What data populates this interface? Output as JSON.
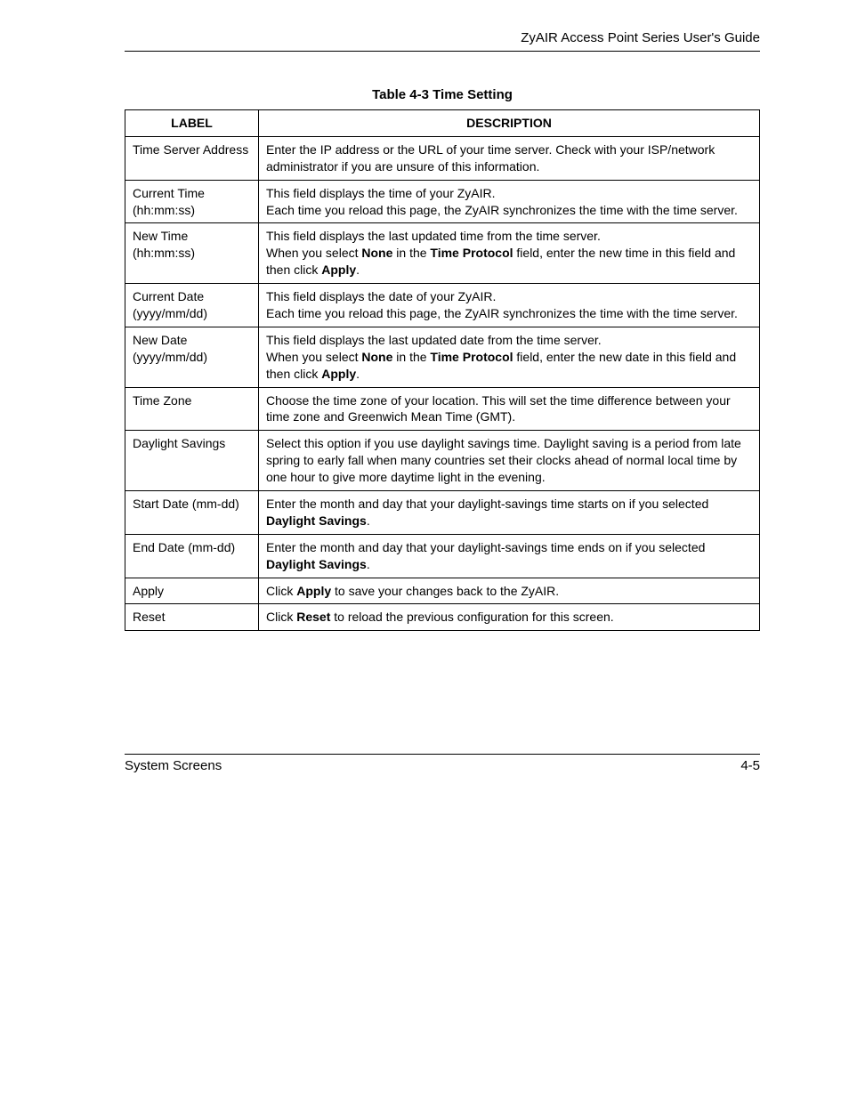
{
  "header": {
    "title": "ZyAIR Access Point Series User's Guide"
  },
  "table": {
    "title": "Table 4-3 Time Setting",
    "columns": {
      "label": "LABEL",
      "description": "DESCRIPTION"
    },
    "rows": [
      {
        "label": "Time Server Address",
        "desc_html": "Enter the IP address or the URL of your time server. Check with your ISP/network administrator if you are unsure of this information."
      },
      {
        "label": "Current Time (hh:mm:ss)",
        "desc_html": "This field displays the time of your ZyAIR.<br>Each time you reload this page, the ZyAIR synchronizes the time with the time server."
      },
      {
        "label": "New Time (hh:mm:ss)",
        "desc_html": "This field displays the last updated time from the time server.<br>When you select <b>None</b> in the <b>Time Protocol</b> field, enter the new time in this field and then click <b>Apply</b>."
      },
      {
        "label": "Current Date (yyyy/mm/dd)",
        "desc_html": "This field displays the date of your ZyAIR.<br>Each time you reload this page, the ZyAIR synchronizes the time with the time server."
      },
      {
        "label": "New Date (yyyy/mm/dd)",
        "desc_html": "This field displays the last updated date from the time server.<br>When you select <b>None</b> in the <b>Time Protocol</b> field, enter the new date in this field and then click <b>Apply</b>."
      },
      {
        "label": "Time Zone",
        "desc_html": "Choose the time zone of your location. This will set the time difference between your time zone and Greenwich Mean Time (GMT)."
      },
      {
        "label": "Daylight Savings",
        "desc_html": "Select this option if you use daylight savings time. Daylight saving is a period from late spring to early fall when many countries set their clocks ahead of normal local time by one hour to give more daytime light in the evening."
      },
      {
        "label": "Start Date (mm-dd)",
        "indent": true,
        "desc_html": "Enter the month and day that your daylight-savings time starts on if you selected <b>Daylight Savings</b>."
      },
      {
        "label": "End Date (mm-dd)",
        "indent": true,
        "desc_html": "Enter the month and day that your daylight-savings time ends on if you selected <b>Daylight Savings</b>."
      },
      {
        "label": "Apply",
        "desc_html": "Click <b>Apply</b> to save your changes back to the ZyAIR."
      },
      {
        "label": "Reset",
        "desc_html": "Click <b>Reset</b> to reload the previous configuration for this screen."
      }
    ]
  },
  "footer": {
    "section": "System Screens",
    "page": "4-5"
  }
}
